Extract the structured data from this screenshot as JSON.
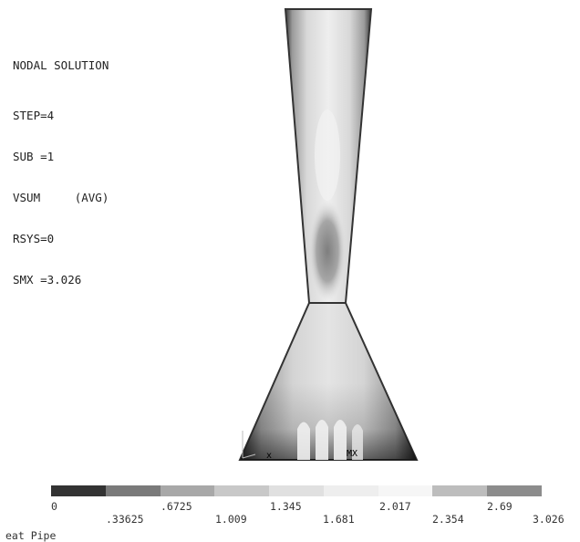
{
  "header": {
    "title": "NODAL SOLUTION",
    "lines": [
      "STEP=4",
      "SUB =1",
      "VSUM     (AVG)",
      "RSYS=0",
      "SMX =3.026"
    ]
  },
  "plot": {
    "min_marker": "x",
    "max_marker": "MX"
  },
  "legend": {
    "colors": [
      "#333333",
      "#7a7a7a",
      "#a8a8a8",
      "#c8c8c8",
      "#e0e0e0",
      "#eeeeee",
      "#f6f6f6",
      "#bdbdbd",
      "#8c8c8c"
    ],
    "ticks_top": [
      "0",
      ".6725",
      "1.345",
      "2.017",
      "2.69"
    ],
    "ticks_bottom": [
      ".33625",
      "1.009",
      "1.681",
      "2.354",
      "3.026"
    ]
  },
  "caption": "eat Pipe"
}
